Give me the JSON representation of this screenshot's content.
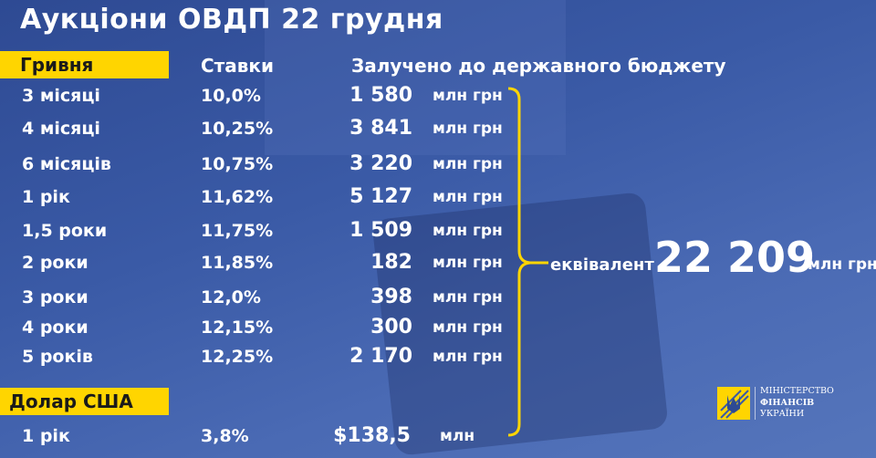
{
  "title": "Аукціони ОВДП 22 грудня",
  "uah_section": {
    "label": "Гривня",
    "rates_header": "Ставки",
    "amount_header": "Залучено до державного бюджету",
    "rows": [
      {
        "term": "3 місяці",
        "rate": "10,0%",
        "amount": "1 580",
        "unit": "млн грн"
      },
      {
        "term": "4 місяці",
        "rate": "10,25%",
        "amount": "3 841",
        "unit": "млн грн"
      },
      {
        "term": "6 місяців",
        "rate": "10,75%",
        "amount": "3 220",
        "unit": "млн грн"
      },
      {
        "term": "1 рік",
        "rate": "11,62%",
        "amount": "5 127",
        "unit": "млн грн"
      },
      {
        "term": "1,5 роки",
        "rate": "11,75%",
        "amount": "1 509",
        "unit": "млн грн"
      },
      {
        "term": "2 роки",
        "rate": "11,85%",
        "amount": "182",
        "unit": "млн грн"
      },
      {
        "term": "3 роки",
        "rate": "12,0%",
        "amount": "398",
        "unit": "млн грн"
      },
      {
        "term": "4 роки",
        "rate": "12,15%",
        "amount": "300",
        "unit": "млн грн"
      },
      {
        "term": "5 років",
        "rate": "12,25%",
        "amount": "2 170",
        "unit": "млн грн"
      }
    ]
  },
  "usd_section": {
    "label": "Долар США",
    "rows": [
      {
        "term": "1 рік",
        "rate": "3,8%",
        "amount": "$138,5",
        "unit": "млн"
      }
    ]
  },
  "total": {
    "prefix": "еквівалент",
    "value": "22 209",
    "unit": "млн грн"
  },
  "logo": {
    "line1": "МІНІСТЕРСТВО",
    "line2": "ФІНАНСІВ",
    "line3": "УКРАЇНИ"
  },
  "colors": {
    "accent": "#ffd500",
    "background": "#3a5aa6"
  }
}
